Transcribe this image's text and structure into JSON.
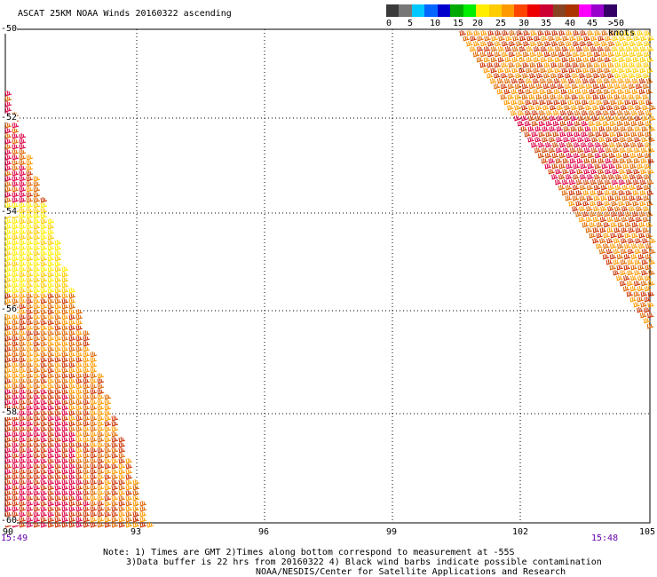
{
  "title": "ASCAT 25KM NOAA Winds 20160322 ascending",
  "legend": {
    "labels": [
      "0",
      "5",
      "10",
      "15",
      "20",
      "25",
      "30",
      "35",
      "40",
      "45",
      ">50 knots"
    ],
    "colors": [
      "#3a3a3a",
      "#777777",
      "#00c8ff",
      "#0066ff",
      "#0000cc",
      "#00aa00",
      "#00ee00",
      "#ffee00",
      "#ffcc00",
      "#ff9900",
      "#ff4400",
      "#ee0000",
      "#cc0033",
      "#884422",
      "#aa3300",
      "#ff00ff",
      "#9900cc",
      "#330066"
    ]
  },
  "map": {
    "lat_labels": [
      "-50",
      "-52",
      "-54",
      "-56",
      "-58",
      "-60"
    ],
    "lon_labels": [
      "90",
      "93",
      "96",
      "99",
      "102",
      "105"
    ],
    "time_left": "15:49",
    "time_right": "15:48",
    "swath_colors": [
      "#ff9900",
      "#dd6600",
      "#cc3300",
      "#ffcc00",
      "#ffee00",
      "#dd0044",
      "#cc4400"
    ]
  },
  "notes": {
    "line1": "Note: 1) Times are GMT 2)Times along bottom correspond to measurement at -55S",
    "line2": "3)Data buffer is 22 hrs from 20160322 4) Black wind barbs indicate possible contamination",
    "line3": "NOAA/NESDIS/Center for Satellite Applications and Research"
  }
}
